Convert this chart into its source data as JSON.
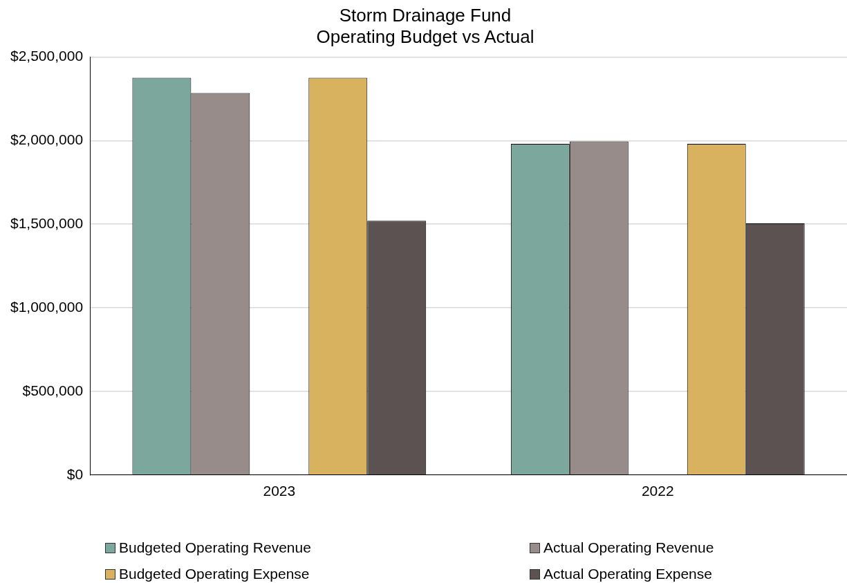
{
  "chart_data": {
    "type": "bar",
    "title": "Storm Drainage Fund\nOperating Budget vs Actual",
    "categories": [
      "2023",
      "2022"
    ],
    "series": [
      {
        "name": "Budgeted Operating Revenue",
        "color": "#7ba79c",
        "values": [
          2375000,
          1980000
        ]
      },
      {
        "name": "Actual Operating Revenue",
        "color": "#978c8a",
        "values": [
          2285000,
          1995000
        ]
      },
      {
        "name": "Budgeted Operating Expense",
        "color": "#d8b25e",
        "values": [
          2375000,
          1980000
        ]
      },
      {
        "name": "Actual Operating Expense",
        "color": "#5c5252",
        "values": [
          1520000,
          1505000
        ]
      }
    ],
    "ylim": [
      0,
      2500000
    ],
    "yticks": [
      {
        "value": 0,
        "label": "$0"
      },
      {
        "value": 500000,
        "label": "$500,000"
      },
      {
        "value": 1000000,
        "label": "$1,000,000"
      },
      {
        "value": 1500000,
        "label": "$1,500,000"
      },
      {
        "value": 2000000,
        "label": "$2,000,000"
      },
      {
        "value": 2500000,
        "label": "$2,500,000"
      }
    ],
    "grid": "y",
    "legend": "bottom"
  }
}
